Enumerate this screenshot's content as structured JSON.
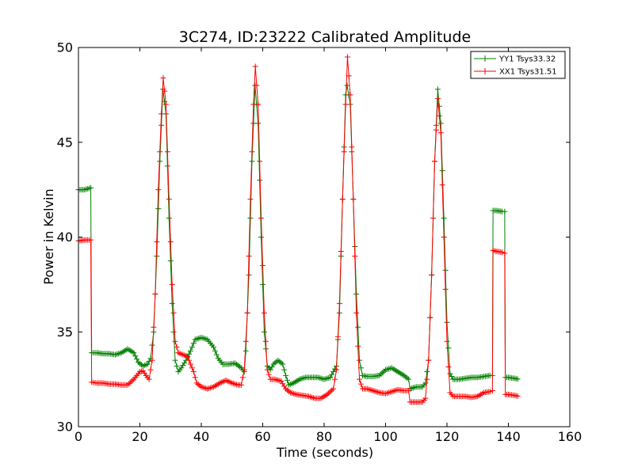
{
  "chart_data": {
    "type": "line",
    "title": "3C274, ID:23222 Calibrated Amplitude",
    "xlabel": "Time (seconds)",
    "ylabel": "Power in Kelvin",
    "xlim": [
      0,
      160
    ],
    "ylim": [
      30,
      50
    ],
    "xticks": [
      "0",
      "20",
      "40",
      "60",
      "80",
      "100",
      "120",
      "140",
      "160"
    ],
    "yticks": [
      "30",
      "35",
      "40",
      "45",
      "50"
    ],
    "grid": false,
    "legend_position": "top-right",
    "marker": "plus",
    "series": [
      {
        "name": "YY1 Tsys33.32",
        "color": "#008000",
        "points": [
          [
            0,
            42.5
          ],
          [
            2,
            42.5
          ],
          [
            4,
            42.6
          ],
          [
            4.3,
            33.9
          ],
          [
            6,
            33.9
          ],
          [
            8,
            33.85
          ],
          [
            10,
            33.85
          ],
          [
            12,
            33.8
          ],
          [
            14,
            33.9
          ],
          [
            16,
            34.1
          ],
          [
            18,
            33.9
          ],
          [
            19.5,
            33.4
          ],
          [
            21,
            33.2
          ],
          [
            22.5,
            33.3
          ],
          [
            23.5,
            33.6
          ],
          [
            24.5,
            35.0
          ],
          [
            25.5,
            39.0
          ],
          [
            26.5,
            44.0
          ],
          [
            27.5,
            47.8
          ],
          [
            28.5,
            46.5
          ],
          [
            29.5,
            41.0
          ],
          [
            30.5,
            36.5
          ],
          [
            31.5,
            33.5
          ],
          [
            32.5,
            32.9
          ],
          [
            33.5,
            33.1
          ],
          [
            35,
            33.5
          ],
          [
            36.5,
            34.0
          ],
          [
            38,
            34.6
          ],
          [
            40,
            34.7
          ],
          [
            42,
            34.6
          ],
          [
            44,
            34.2
          ],
          [
            45.5,
            33.6
          ],
          [
            47,
            33.3
          ],
          [
            49,
            33.3
          ],
          [
            51,
            33.35
          ],
          [
            53,
            33.1
          ],
          [
            54,
            32.9
          ],
          [
            54.5,
            34.0
          ],
          [
            55.5,
            38.0
          ],
          [
            56.5,
            44.0
          ],
          [
            57.5,
            48.0
          ],
          [
            58.5,
            46.0
          ],
          [
            59.5,
            40.0
          ],
          [
            60.5,
            35.0
          ],
          [
            61.5,
            33.2
          ],
          [
            62.5,
            33.0
          ],
          [
            63.5,
            33.3
          ],
          [
            65,
            33.5
          ],
          [
            66.5,
            33.3
          ],
          [
            67.5,
            32.7
          ],
          [
            68.5,
            32.2
          ],
          [
            70,
            32.3
          ],
          [
            72,
            32.5
          ],
          [
            74,
            32.6
          ],
          [
            76,
            32.6
          ],
          [
            78,
            32.6
          ],
          [
            80,
            32.5
          ],
          [
            82,
            32.6
          ],
          [
            83,
            32.9
          ],
          [
            84,
            33.2
          ],
          [
            85,
            36.0
          ],
          [
            86,
            42.0
          ],
          [
            87,
            47.5
          ],
          [
            87.5,
            48.0
          ],
          [
            88.5,
            47.0
          ],
          [
            89.5,
            42.0
          ],
          [
            90.5,
            37.0
          ],
          [
            91.5,
            33.5
          ],
          [
            92.5,
            32.7
          ],
          [
            94,
            32.65
          ],
          [
            96,
            32.65
          ],
          [
            98,
            32.7
          ],
          [
            100,
            33.0
          ],
          [
            102,
            33.1
          ],
          [
            104,
            32.9
          ],
          [
            106,
            32.7
          ],
          [
            107.5,
            32.5
          ],
          [
            108,
            32.0
          ],
          [
            110,
            32.1
          ],
          [
            112,
            32.1
          ],
          [
            113,
            32.3
          ],
          [
            114,
            33.5
          ],
          [
            115,
            38.0
          ],
          [
            116,
            44.0
          ],
          [
            117,
            47.8
          ],
          [
            118,
            46.0
          ],
          [
            119,
            41.0
          ],
          [
            120,
            35.5
          ],
          [
            121,
            32.8
          ],
          [
            122,
            32.5
          ],
          [
            124,
            32.5
          ],
          [
            126,
            32.55
          ],
          [
            128,
            32.6
          ],
          [
            130,
            32.6
          ],
          [
            132,
            32.65
          ],
          [
            134,
            32.7
          ],
          [
            134.8,
            32.7
          ],
          [
            135,
            41.4
          ],
          [
            136,
            41.4
          ],
          [
            138,
            41.35
          ],
          [
            138.8,
            41.35
          ],
          [
            139,
            32.6
          ],
          [
            140,
            32.6
          ],
          [
            142,
            32.55
          ],
          [
            143.5,
            32.5
          ]
        ]
      },
      {
        "name": "XX1 Tsys31.51",
        "color": "#ff0000",
        "points": [
          [
            0,
            39.8
          ],
          [
            2,
            39.85
          ],
          [
            4,
            39.85
          ],
          [
            4.3,
            32.35
          ],
          [
            6,
            32.3
          ],
          [
            8,
            32.3
          ],
          [
            10,
            32.25
          ],
          [
            12,
            32.25
          ],
          [
            14,
            32.2
          ],
          [
            16,
            32.2
          ],
          [
            18,
            32.5
          ],
          [
            20,
            32.9
          ],
          [
            21,
            32.95
          ],
          [
            22,
            32.7
          ],
          [
            23,
            32.5
          ],
          [
            24,
            33.5
          ],
          [
            25,
            37.0
          ],
          [
            26,
            42.5
          ],
          [
            27,
            46.5
          ],
          [
            27.6,
            48.4
          ],
          [
            28.5,
            47.0
          ],
          [
            29.5,
            42.0
          ],
          [
            30.5,
            37.5
          ],
          [
            31.5,
            34.5
          ],
          [
            32.5,
            33.9
          ],
          [
            34,
            33.8
          ],
          [
            35.5,
            33.7
          ],
          [
            36.5,
            33.3
          ],
          [
            37.5,
            32.9
          ],
          [
            38.5,
            32.3
          ],
          [
            40,
            32.1
          ],
          [
            42,
            32.0
          ],
          [
            44,
            32.1
          ],
          [
            46,
            32.3
          ],
          [
            48,
            32.45
          ],
          [
            50,
            32.3
          ],
          [
            52,
            32.2
          ],
          [
            53,
            32.2
          ],
          [
            54,
            33.0
          ],
          [
            55,
            36.0
          ],
          [
            56,
            42.0
          ],
          [
            57,
            47.0
          ],
          [
            57.6,
            49.0
          ],
          [
            58.5,
            47.0
          ],
          [
            59.5,
            41.0
          ],
          [
            60.5,
            36.0
          ],
          [
            61.5,
            33.0
          ],
          [
            62.5,
            32.5
          ],
          [
            64,
            32.5
          ],
          [
            66,
            32.4
          ],
          [
            67.5,
            32.0
          ],
          [
            69,
            31.8
          ],
          [
            71,
            31.7
          ],
          [
            73,
            31.65
          ],
          [
            75,
            31.6
          ],
          [
            77,
            31.5
          ],
          [
            79,
            31.5
          ],
          [
            81,
            31.7
          ],
          [
            83,
            32.0
          ],
          [
            84,
            33.0
          ],
          [
            85,
            36.5
          ],
          [
            86,
            42.0
          ],
          [
            87,
            47.0
          ],
          [
            87.6,
            49.5
          ],
          [
            88.5,
            47.5
          ],
          [
            89.5,
            42.0
          ],
          [
            90.5,
            36.0
          ],
          [
            91.5,
            32.5
          ],
          [
            92.5,
            32.0
          ],
          [
            94,
            32.0
          ],
          [
            96,
            31.9
          ],
          [
            98,
            31.8
          ],
          [
            100,
            31.75
          ],
          [
            102,
            31.85
          ],
          [
            104,
            31.95
          ],
          [
            106,
            31.9
          ],
          [
            107.5,
            31.9
          ],
          [
            108,
            31.3
          ],
          [
            110,
            31.3
          ],
          [
            112,
            31.3
          ],
          [
            113,
            31.5
          ],
          [
            114,
            33.5
          ],
          [
            115,
            38.0
          ],
          [
            116,
            44.0
          ],
          [
            117,
            47.3
          ],
          [
            118,
            45.5
          ],
          [
            119,
            40.0
          ],
          [
            120,
            34.5
          ],
          [
            121,
            31.8
          ],
          [
            122,
            31.6
          ],
          [
            124,
            31.6
          ],
          [
            126,
            31.6
          ],
          [
            128,
            31.55
          ],
          [
            130,
            31.6
          ],
          [
            132,
            31.8
          ],
          [
            134,
            31.85
          ],
          [
            134.8,
            31.9
          ],
          [
            135,
            39.3
          ],
          [
            136,
            39.25
          ],
          [
            138,
            39.2
          ],
          [
            138.8,
            39.15
          ],
          [
            139,
            31.7
          ],
          [
            140,
            31.7
          ],
          [
            142,
            31.65
          ],
          [
            143.5,
            31.6
          ]
        ]
      }
    ]
  }
}
